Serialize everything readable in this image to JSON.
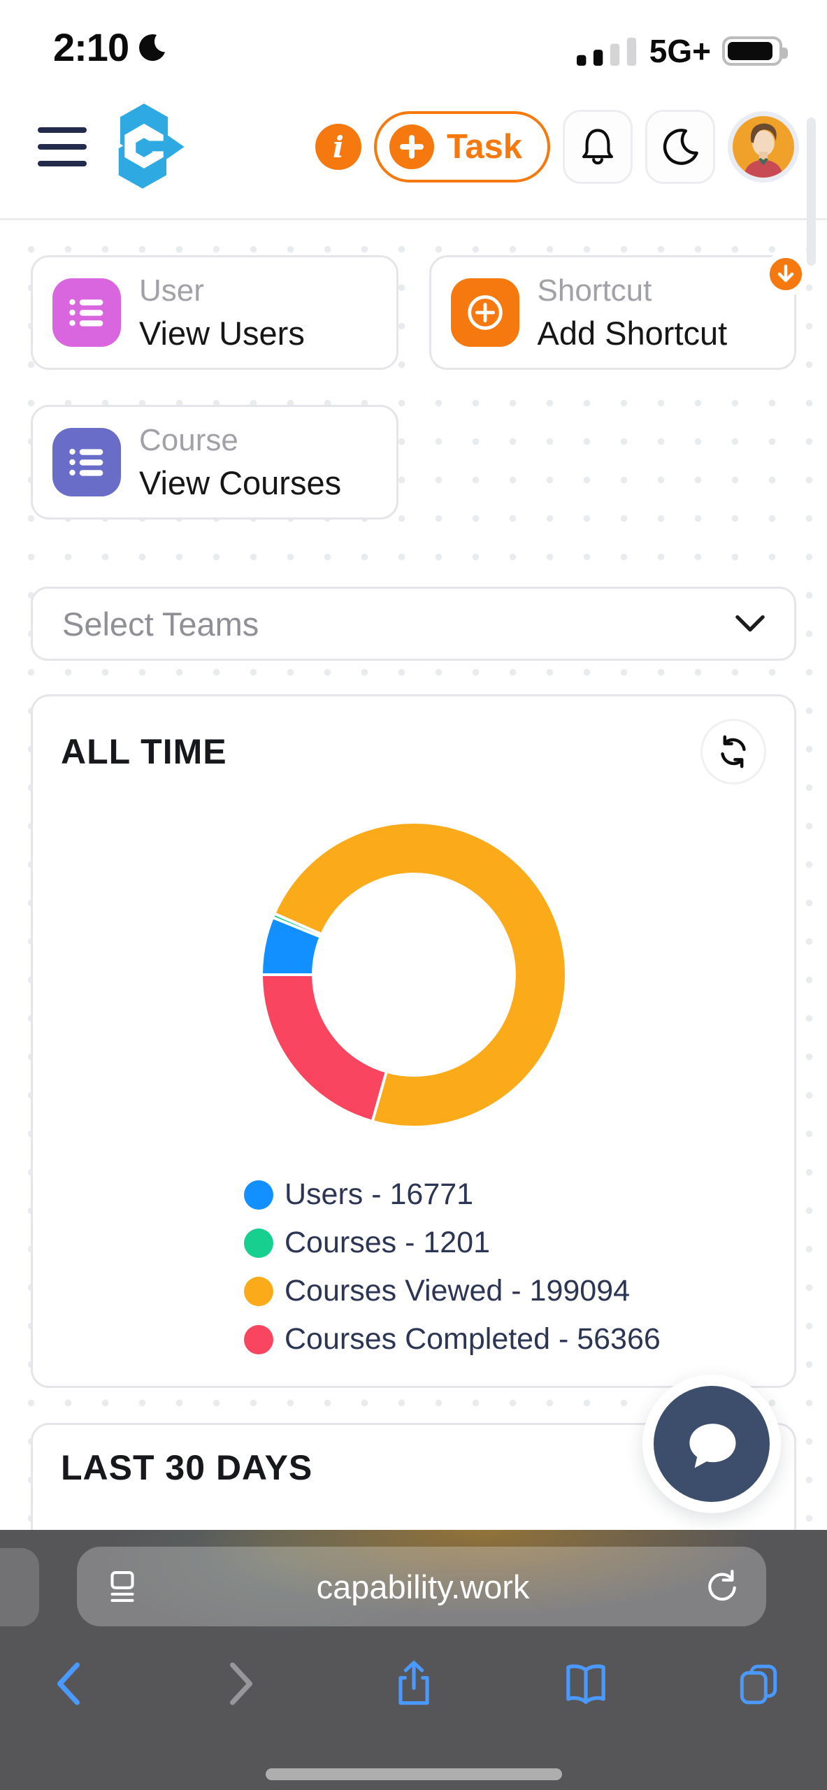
{
  "status_bar": {
    "time": "2:10",
    "network": "5G+",
    "signal_filled_bars": 2,
    "signal_total_bars": 4,
    "battery": "full",
    "focus_mode": "moon"
  },
  "header": {
    "info_symbol": "i",
    "task_button": "Task"
  },
  "quick_cards": [
    {
      "category": "User",
      "action": "View Users"
    },
    {
      "category": "Shortcut",
      "action": "Add Shortcut"
    },
    {
      "category": "Course",
      "action": "View Courses"
    }
  ],
  "teams_select": {
    "placeholder": "Select Teams"
  },
  "sections": {
    "all_time": "ALL TIME",
    "last_30_days": "LAST 30 DAYS"
  },
  "browser": {
    "url": "capability.work"
  },
  "colors": {
    "accent_orange": "#f5790f",
    "logo_blue": "#2fa9e1",
    "user_icon_bg": "#d965df",
    "course_icon_bg": "#6a6dc7",
    "shortcut_icon_bg": "#f5790f",
    "chat_bubble_bg": "#3c4e6b",
    "ios_blue": "#4b99ff"
  },
  "chart_data": {
    "type": "pie",
    "donut": true,
    "title": "ALL TIME",
    "labels": [
      "Users",
      "Courses",
      "Courses Viewed",
      "Courses Completed"
    ],
    "values": [
      16771,
      1201,
      199094,
      56366
    ],
    "colors": [
      "#1290ff",
      "#17cf8e",
      "#fbab19",
      "#f9455f"
    ],
    "legend_items": [
      "Users - 16771",
      "Courses - 1201",
      "Courses Viewed - 199094",
      "Courses Completed - 56366"
    ],
    "legend_position": "bottom-left",
    "start_angle_deg": 270,
    "inner_radius_ratio": 0.66
  }
}
